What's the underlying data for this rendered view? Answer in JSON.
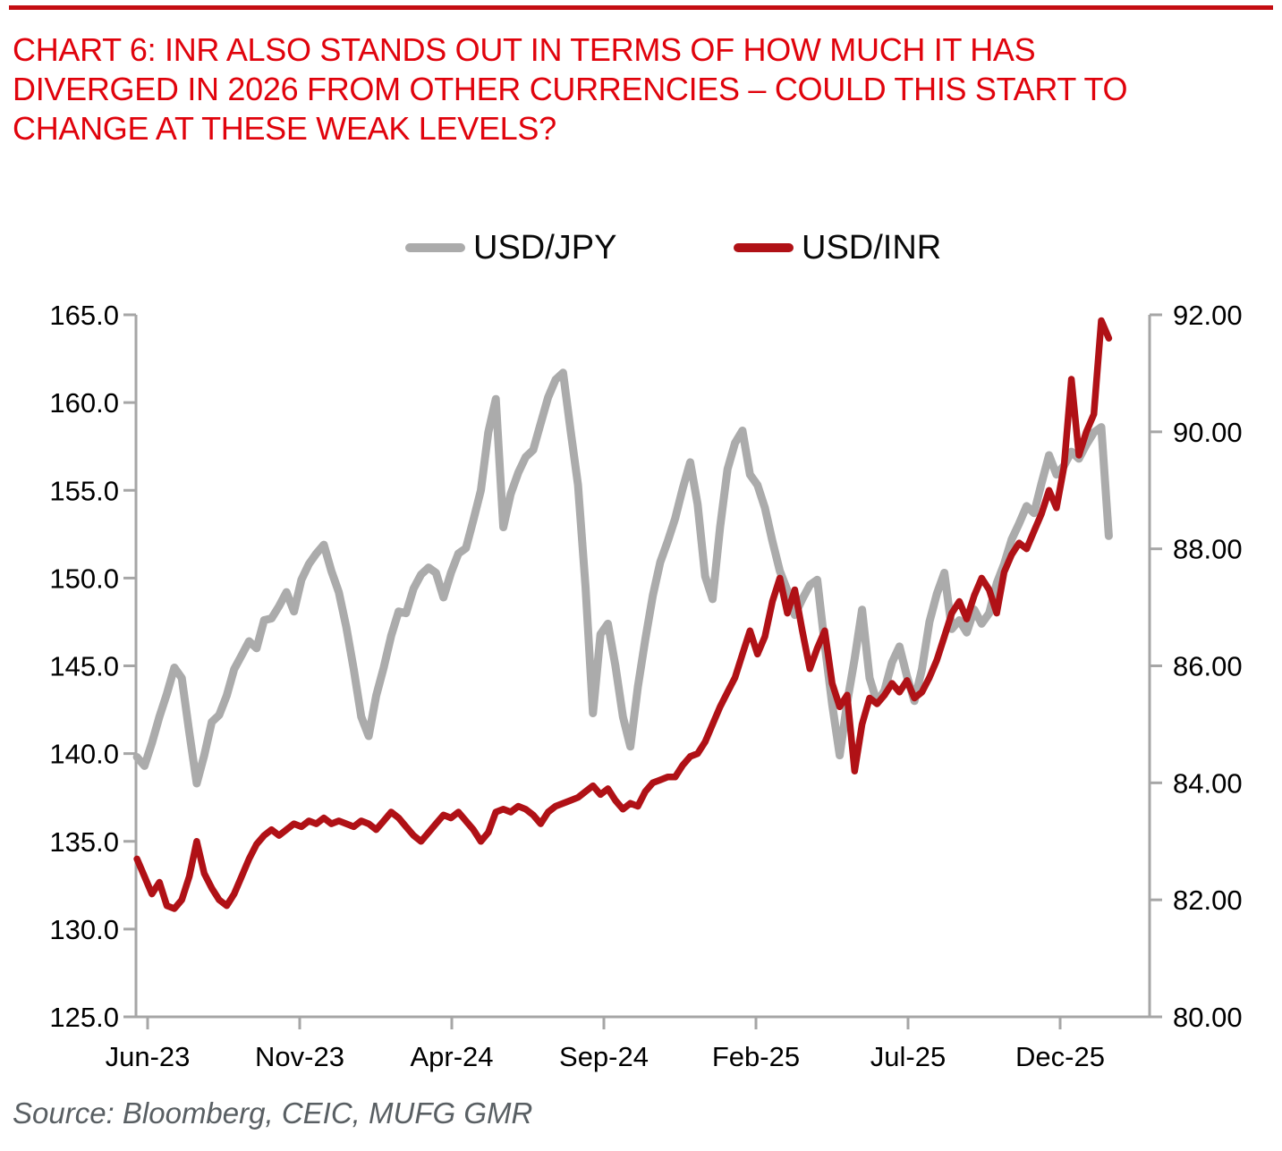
{
  "page": {
    "top_rule_color": "#c40d12",
    "background": "#ffffff"
  },
  "title": {
    "color": "#e0030c",
    "lines": [
      "CHART 6: INR ALSO STANDS OUT IN TERMS OF HOW MUCH IT HAS",
      "DIVERGED IN 2026 FROM OTHER CURRENCIES – COULD THIS START TO",
      "CHANGE AT THESE WEAK LEVELS?"
    ]
  },
  "legend": [
    {
      "label": "USD/JPY",
      "color": "#ababab"
    },
    {
      "label": "USD/INR",
      "color": "#b01116"
    }
  ],
  "source": {
    "text": "Source: Bloomberg, CEIC, MUFG GMR"
  },
  "chart_data": {
    "type": "line",
    "title": "CHART 6: INR divergence vs other currencies in 2026",
    "axis_color": "#a6a6a6",
    "grid": false,
    "x_unit": "months since Jun-2023 (weekly samples)",
    "x_range_months": [
      -0.35,
      31.6
    ],
    "x_ticks": [
      {
        "month": 0,
        "label": "Jun-23"
      },
      {
        "month": 5,
        "label": "Nov-23"
      },
      {
        "month": 10,
        "label": "Apr-24"
      },
      {
        "month": 15,
        "label": "Sep-24"
      },
      {
        "month": 20,
        "label": "Feb-25"
      },
      {
        "month": 25,
        "label": "Jul-25"
      },
      {
        "month": 30,
        "label": "Dec-25"
      }
    ],
    "left_axis": {
      "min": 125,
      "max": 165,
      "tick_values": [
        165,
        160,
        155,
        150,
        145,
        140,
        135,
        130,
        125
      ],
      "tick_labels": [
        "165.0",
        "160.0",
        "155.0",
        "150.0",
        "145.0",
        "140.0",
        "135.0",
        "130.0",
        "125.0"
      ]
    },
    "right_axis": {
      "min": 80,
      "max": 92,
      "tick_values": [
        92,
        90,
        88,
        86,
        84,
        82,
        80
      ],
      "tick_labels": [
        "92.00",
        "90.00",
        "88.00",
        "86.00",
        "84.00",
        "82.00",
        "80.00"
      ]
    },
    "series": [
      {
        "name": "USD/JPY",
        "axis": "left",
        "color": "#ababab",
        "width": 9,
        "values": [
          139.8,
          139.3,
          140.6,
          142.1,
          143.4,
          144.9,
          144.3,
          141.2,
          138.3,
          139.9,
          141.8,
          142.2,
          143.3,
          144.8,
          145.6,
          146.4,
          146.0,
          147.6,
          147.7,
          148.4,
          149.2,
          148.1,
          149.9,
          150.8,
          151.4,
          151.9,
          150.4,
          149.2,
          147.2,
          144.8,
          142.1,
          141.0,
          143.3,
          144.9,
          146.7,
          148.1,
          148.0,
          149.4,
          150.2,
          150.6,
          150.3,
          148.9,
          150.3,
          151.4,
          151.7,
          153.3,
          155.0,
          158.3,
          160.2,
          152.9,
          154.8,
          156.0,
          156.9,
          157.3,
          158.8,
          160.3,
          161.3,
          161.7,
          158.4,
          155.3,
          149.5,
          142.3,
          146.8,
          147.4,
          145.0,
          142.1,
          140.4,
          143.8,
          146.5,
          149.0,
          150.9,
          152.1,
          153.4,
          155.1,
          156.6,
          154.2,
          150.1,
          148.8,
          152.9,
          156.2,
          157.7,
          158.4,
          155.9,
          155.3,
          154.0,
          152.1,
          150.4,
          149.3,
          147.9,
          148.8,
          149.6,
          149.9,
          146.2,
          142.8,
          139.9,
          142.9,
          145.4,
          148.2,
          144.3,
          142.9,
          143.6,
          145.2,
          146.1,
          144.4,
          143.0,
          144.8,
          147.5,
          149.1,
          150.3,
          147.1,
          147.6,
          146.9,
          148.2,
          147.4,
          148.0,
          149.7,
          150.8,
          152.2,
          153.1,
          154.1,
          153.7,
          155.4,
          157.0,
          155.9,
          156.4,
          157.2,
          156.8,
          157.6,
          158.3,
          158.6,
          152.4
        ]
      },
      {
        "name": "USD/INR",
        "axis": "right",
        "color": "#b01116",
        "width": 7.5,
        "values": [
          82.7,
          82.4,
          82.1,
          82.3,
          81.9,
          81.85,
          82.0,
          82.4,
          83.0,
          82.45,
          82.2,
          82.0,
          81.9,
          82.1,
          82.4,
          82.7,
          82.95,
          83.1,
          83.2,
          83.1,
          83.2,
          83.3,
          83.25,
          83.35,
          83.3,
          83.4,
          83.3,
          83.35,
          83.3,
          83.25,
          83.35,
          83.3,
          83.2,
          83.35,
          83.5,
          83.4,
          83.25,
          83.1,
          83.0,
          83.15,
          83.3,
          83.45,
          83.4,
          83.5,
          83.35,
          83.2,
          83.0,
          83.15,
          83.5,
          83.55,
          83.5,
          83.6,
          83.55,
          83.45,
          83.3,
          83.5,
          83.6,
          83.65,
          83.7,
          83.75,
          83.85,
          83.95,
          83.8,
          83.9,
          83.7,
          83.55,
          83.65,
          83.6,
          83.85,
          84.0,
          84.05,
          84.1,
          84.1,
          84.3,
          84.45,
          84.5,
          84.7,
          85.0,
          85.3,
          85.55,
          85.8,
          86.2,
          86.6,
          86.2,
          86.5,
          87.1,
          87.5,
          86.9,
          87.3,
          86.6,
          85.95,
          86.3,
          86.6,
          85.7,
          85.3,
          85.5,
          84.2,
          85.0,
          85.45,
          85.35,
          85.5,
          85.7,
          85.55,
          85.75,
          85.45,
          85.55,
          85.8,
          86.1,
          86.5,
          86.9,
          87.1,
          86.8,
          87.2,
          87.5,
          87.3,
          86.9,
          87.6,
          87.9,
          88.1,
          88.0,
          88.3,
          88.6,
          89.0,
          88.7,
          89.4,
          90.9,
          89.6,
          90.0,
          90.3,
          91.9,
          91.6
        ]
      }
    ]
  }
}
